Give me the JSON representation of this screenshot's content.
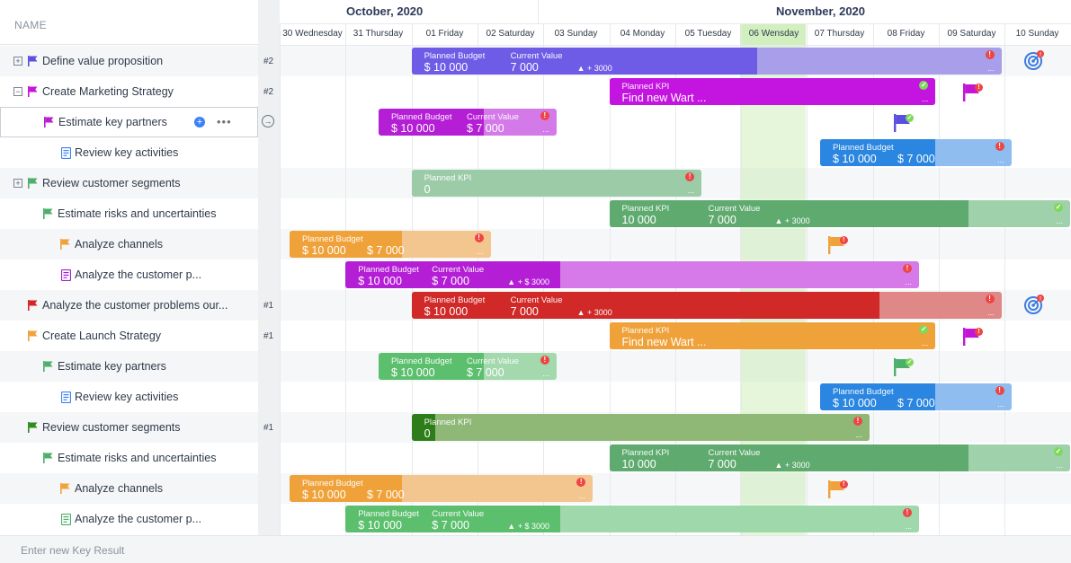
{
  "header": {
    "name_label": "NAME"
  },
  "months": [
    {
      "label": "October, 2020",
      "x": 74
    },
    {
      "label": "November, 2020",
      "x": 552
    }
  ],
  "days": [
    "30 Wednesday",
    "31 Thursday",
    "01 Friday",
    "02 Saturday",
    "03 Sunday",
    "04 Monday",
    "05 Tuesday",
    "06 Wensday",
    "07 Thursday",
    "08 Friday",
    "09 Saturday",
    "10 Sunday"
  ],
  "rows": [
    {
      "label": "Define value proposition",
      "indent": 0,
      "expander": "+",
      "flag": "#5b4fe0",
      "prio": "#2",
      "alt": true
    },
    {
      "label": "Create Marketing Strategy",
      "indent": 0,
      "expander": "−",
      "flag": "#c414d6",
      "prio": "#2",
      "alt": false
    },
    {
      "label": "Estimate key partners",
      "indent": 1,
      "flag": "#b81fd1",
      "selected": true,
      "plus": "+",
      "dots": "•••"
    },
    {
      "label": "Review key activities",
      "indent": 2,
      "doc": "#3b82f6",
      "alt": false
    },
    {
      "label": "Review customer segments",
      "indent": 0,
      "expander": "+",
      "flag": "#4caf6a",
      "alt": true
    },
    {
      "label": "Estimate risks and uncertainties",
      "indent": 1,
      "flag": "#4caf6a",
      "alt": false
    },
    {
      "label": "Analyze channels",
      "indent": 2,
      "flag": "#f0a23a",
      "alt": true
    },
    {
      "label": "Analyze the customer p...",
      "indent": 2,
      "doc": "#a21fd6",
      "alt": false
    },
    {
      "label": "Analyze the customer problems our...",
      "indent": 0,
      "flag": "#d82424",
      "prio": "#1",
      "alt": true
    },
    {
      "label": "Create Launch Strategy",
      "indent": 0,
      "flag": "#f0a23a",
      "prio": "#1",
      "alt": false
    },
    {
      "label": "Estimate key partners",
      "indent": 1,
      "flag": "#4caf6a",
      "alt": true
    },
    {
      "label": "Review key activities",
      "indent": 2,
      "doc": "#3b82f6",
      "alt": false
    },
    {
      "label": "Review customer segments",
      "indent": 0,
      "flag": "#2e8b1e",
      "prio": "#1",
      "alt": true
    },
    {
      "label": "Estimate risks and uncertainties",
      "indent": 1,
      "flag": "#4caf6a",
      "alt": false
    },
    {
      "label": "Analyze channels",
      "indent": 2,
      "flag": "#f0a23a",
      "alt": true
    },
    {
      "label": "Analyze the customer p...",
      "indent": 2,
      "doc": "#4caf6a",
      "alt": false
    }
  ],
  "bars": [
    {
      "row": 0,
      "start": 2,
      "end": 10.95,
      "color": "#6f5ce6",
      "light": "#a99ee9",
      "split": 7.25,
      "f1": {
        "t": "Planned Budget",
        "v": "$ 10 000"
      },
      "f2": {
        "t": "Current Value",
        "v": "7 000"
      },
      "delta": "▲ + 3000",
      "ind": "err",
      "more": "..."
    },
    {
      "row": 1,
      "start": 5,
      "end": 9.95,
      "color": "#c414e0",
      "light": "#c414e0",
      "split": 9.95,
      "f1": {
        "t": "Planned KPI",
        "v": "Find new Wart ..."
      },
      "ind": "ok",
      "more": "..."
    },
    {
      "row": 2,
      "start": 1.5,
      "end": 4.2,
      "color": "#b41fd6",
      "light": "#d37ae8",
      "split": 3.1,
      "f1": {
        "t": "Planned Budget",
        "v": "$ 10 000"
      },
      "f2": {
        "t": "Current Value",
        "v": "$ 7 000"
      },
      "ind": "err",
      "more": "..."
    },
    {
      "row": 3,
      "start": 8.2,
      "end": 11.1,
      "color": "#2a86e0",
      "light": "#8fbdf0",
      "split": 9.95,
      "f1": {
        "t": "Planned Budget",
        "v": "$ 10 000"
      },
      "f2": {
        "t": "",
        "v": "$ 7 000"
      },
      "ind": "err",
      "more": "..."
    },
    {
      "row": 4,
      "start": 2,
      "end": 6.4,
      "color": "#9ccba8",
      "light": "#9ccba8",
      "split": 6.4,
      "f1": {
        "t": "Planned KPI",
        "v": "0"
      },
      "ind": "err",
      "more": "..."
    },
    {
      "row": 5,
      "start": 5,
      "end": 12.1,
      "color": "#5faa6f",
      "light": "#9fd2aa",
      "split": 10.45,
      "f1": {
        "t": "Planned KPI",
        "v": "10 000"
      },
      "f2": {
        "t": "Current Value",
        "v": "7 000"
      },
      "delta": "▲ + 3000",
      "ind": "ok",
      "more": "..."
    },
    {
      "row": 6,
      "start": 0.15,
      "end": 3.2,
      "color": "#f0a23a",
      "light": "#f3c58f",
      "split": 1.85,
      "f1": {
        "t": "Planned Budget",
        "v": "$ 10 000"
      },
      "f2": {
        "t": "",
        "v": "$ 7 000"
      },
      "ind": "err",
      "more": "..."
    },
    {
      "row": 7,
      "start": 1,
      "end": 9.7,
      "color": "#b41fd6",
      "light": "#d57ae8",
      "split": 4.25,
      "f1": {
        "t": "Planned Budget",
        "v": "$ 10 000"
      },
      "f2": {
        "t": "Current Value",
        "v": "$ 7 000"
      },
      "delta": "▲ + $ 3000",
      "ind": "err",
      "more": "..."
    },
    {
      "row": 8,
      "start": 2,
      "end": 10.95,
      "color": "#d12828",
      "light": "#e08888",
      "split": 9.1,
      "f1": {
        "t": "Planned Budget",
        "v": "$ 10 000"
      },
      "f2": {
        "t": "Current Value",
        "v": "7 000"
      },
      "delta": "▲ + 3000",
      "ind": "err",
      "more": "..."
    },
    {
      "row": 9,
      "start": 5,
      "end": 9.95,
      "color": "#f0a23a",
      "light": "#f0a23a",
      "split": 9.95,
      "f1": {
        "t": "Planned KPI",
        "v": "Find new Wart ..."
      },
      "ind": "ok",
      "more": "..."
    },
    {
      "row": 10,
      "start": 1.5,
      "end": 4.2,
      "color": "#5cbf6e",
      "light": "#a3d9ad",
      "split": 3.1,
      "f1": {
        "t": "Planned Budget",
        "v": "$ 10 000"
      },
      "f2": {
        "t": "Current Value",
        "v": "$ 7 000"
      },
      "ind": "err",
      "more": "..."
    },
    {
      "row": 11,
      "start": 8.2,
      "end": 11.1,
      "color": "#2a86e0",
      "light": "#8fbdf0",
      "split": 9.95,
      "f1": {
        "t": "Planned Budget",
        "v": "$ 10 000"
      },
      "f2": {
        "t": "",
        "v": "$ 7 000"
      },
      "ind": "err",
      "more": "..."
    },
    {
      "row": 12,
      "start": 2,
      "end": 8.95,
      "color": "#8fb877",
      "light": "#8fb877",
      "split": 8.95,
      "lead": "#2e7d1b",
      "f1": {
        "t": "Planned KPI",
        "v": "0"
      },
      "ind": "err",
      "more": "..."
    },
    {
      "row": 13,
      "start": 5,
      "end": 12.1,
      "color": "#5faa6f",
      "light": "#9fd2aa",
      "split": 10.45,
      "f1": {
        "t": "Planned KPI",
        "v": "10 000"
      },
      "f2": {
        "t": "Current Value",
        "v": "7 000"
      },
      "delta": "▲ + 3000",
      "ind": "ok",
      "more": "..."
    },
    {
      "row": 14,
      "start": 0.15,
      "end": 4.75,
      "color": "#f0a23a",
      "light": "#f3c58f",
      "split": 1.85,
      "f1": {
        "t": "Planned Budget",
        "v": "$ 10 000"
      },
      "f2": {
        "t": "",
        "v": "$ 7 000"
      },
      "ind": "err",
      "more": "..."
    },
    {
      "row": 15,
      "start": 1,
      "end": 9.7,
      "color": "#5cbf6e",
      "light": "#9ed8ab",
      "split": 4.25,
      "f1": {
        "t": "Planned Budget",
        "v": "$ 10 000"
      },
      "f2": {
        "t": "Current Value",
        "v": "$ 7 000"
      },
      "delta": "▲ + $ 3000",
      "ind": "err",
      "more": "..."
    }
  ],
  "markers": [
    {
      "type": "target",
      "row": 0,
      "col": 11.4
    },
    {
      "type": "flag",
      "row": 1,
      "col": 10.45,
      "color": "#c414d6",
      "badge": "err"
    },
    {
      "type": "flag",
      "row": 2,
      "col": 9.4,
      "color": "#5b4fe0",
      "badge": "ok"
    },
    {
      "type": "flag",
      "row": 6,
      "col": 8.4,
      "color": "#f0a23a",
      "badge": "err"
    },
    {
      "type": "target",
      "row": 8,
      "col": 11.4
    },
    {
      "type": "flag",
      "row": 9,
      "col": 10.45,
      "color": "#c414d6",
      "badge": "err"
    },
    {
      "type": "flag",
      "row": 10,
      "col": 9.4,
      "color": "#4caf6a",
      "badge": "ok"
    },
    {
      "type": "flag",
      "row": 14,
      "col": 8.4,
      "color": "#f0a23a",
      "badge": "err"
    }
  ],
  "footer": {
    "placeholder": "Enter new Key Result"
  }
}
